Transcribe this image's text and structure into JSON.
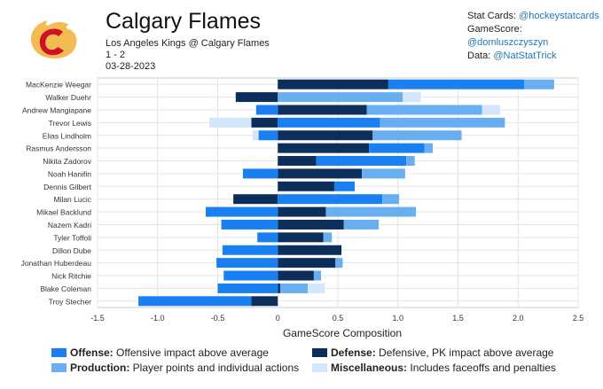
{
  "header": {
    "title": "Calgary Flames",
    "matchup": "Los Angeles Kings @ Calgary Flames",
    "score": "1 - 2",
    "date": "03-28-2023"
  },
  "credits": [
    {
      "label": "Stat Cards:",
      "handle": "@hockeystatcards"
    },
    {
      "label": "GameScore:",
      "handle": "@domluszczyszyn"
    },
    {
      "label": "Data:",
      "handle": "@NatStatTrick"
    }
  ],
  "colors": {
    "offense": "#1a7ff0",
    "defense": "#0b2e5a",
    "production": "#6aaef2",
    "misc": "#d4e6fb",
    "logo_red": "#ce1126",
    "logo_yellow": "#f3bc52"
  },
  "legend": [
    {
      "key": "offense",
      "name": "Offense:",
      "desc": "Offensive impact above average"
    },
    {
      "key": "defense",
      "name": "Defense:",
      "desc": "Defensive, PK impact above average"
    },
    {
      "key": "production",
      "name": "Production:",
      "desc": "Player points and individual actions"
    },
    {
      "key": "misc",
      "name": "Miscellaneous:",
      "desc": "Includes faceoffs and penalties"
    }
  ],
  "chart_data": {
    "type": "bar",
    "orientation": "horizontal",
    "stacked": true,
    "xlabel": "GameScore Composition",
    "xlim": [
      -1.5,
      2.5
    ],
    "xticks": [
      -1.5,
      -1.0,
      -0.5,
      0,
      0.5,
      1.0,
      1.5,
      2.0,
      2.5
    ],
    "xtick_labels": [
      "-1.5",
      "-1.0",
      "-0.5",
      "0",
      "0.5",
      "1.0",
      "1.5",
      "2.0",
      "2.5"
    ],
    "grid": true,
    "categories": [
      "MacKenzie Weegar",
      "Walker Duehr",
      "Andrew Mangiapane",
      "Trevor Lewis",
      "Elias Lindholm",
      "Rasmus Andersson",
      "Nikita Zadorov",
      "Noah Hanifin",
      "Dennis Gilbert",
      "Milan Lucic",
      "Mikael Backlund",
      "Nazem Kadri",
      "Tyler Toffoli",
      "Dillon Dube",
      "Jonathan Huberdeau",
      "Nick Ritchie",
      "Blake Coleman",
      "Troy Stecher"
    ],
    "series": [
      {
        "name": "Defense",
        "key": "defense",
        "values": [
          0.92,
          -0.35,
          0.74,
          -0.22,
          0.79,
          0.76,
          0.32,
          0.7,
          0.47,
          -0.37,
          0.4,
          0.55,
          0.38,
          0.53,
          0.48,
          0.3,
          0.02,
          -0.22
        ]
      },
      {
        "name": "Offense",
        "key": "offense",
        "values": [
          1.13,
          0,
          -0.18,
          0.85,
          -0.16,
          0.46,
          0.75,
          -0.29,
          0.17,
          0.87,
          -0.6,
          -0.47,
          -0.17,
          -0.46,
          -0.51,
          -0.45,
          -0.5,
          -0.94
        ]
      },
      {
        "name": "Production",
        "key": "production",
        "values": [
          0.25,
          1.04,
          0.96,
          1.04,
          0.74,
          0.07,
          0.07,
          0.36,
          0,
          0.14,
          0.75,
          0.29,
          0.07,
          0,
          0.06,
          0.06,
          0.23,
          0
        ]
      },
      {
        "name": "Miscellaneous",
        "key": "misc",
        "values": [
          0,
          0.15,
          0.15,
          -0.35,
          -0.05,
          0,
          0,
          0,
          0,
          0,
          0,
          0,
          0,
          0,
          0,
          0,
          0.14,
          0
        ]
      }
    ]
  }
}
